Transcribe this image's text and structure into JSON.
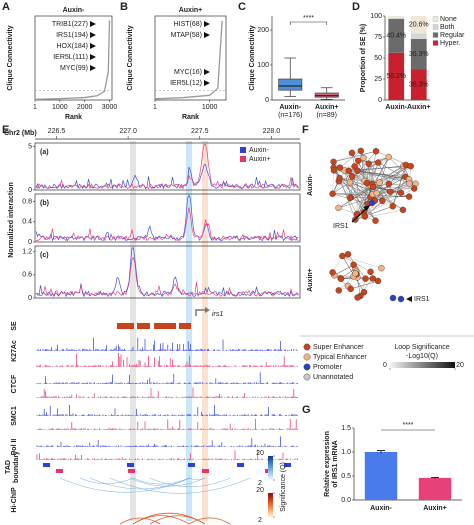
{
  "panel_labels": [
    "A",
    "B",
    "C",
    "D",
    "E",
    "F",
    "G"
  ],
  "chart_data": [
    {
      "type": "rank",
      "title": "Auxin-",
      "xlabel": "Rank",
      "ylabel": "Clique Connectivity",
      "x": [
        1,
        1000,
        2000,
        2500,
        2800,
        2950,
        3000
      ],
      "values": [
        2,
        4,
        7,
        12,
        25,
        80,
        227
      ],
      "xlim": [
        1,
        3100
      ],
      "ylim": [
        0,
        240
      ],
      "xticks": [
        1,
        1000,
        2000,
        3000
      ],
      "threshold": 27,
      "color": "#9a9a9a",
      "annotations": [
        "TRIB1(227)",
        "IRS1(194)",
        "HOX(184)",
        "IER5L(111)",
        "MYC(99)"
      ]
    },
    {
      "type": "rank",
      "title": "Auxin+",
      "xlabel": "Rank",
      "ylabel": "Clique Connectivity",
      "x": [
        1,
        500,
        1000,
        1150,
        1230
      ],
      "values": [
        1,
        2,
        4,
        10,
        68
      ],
      "xlim": [
        1,
        1300
      ],
      "ylim": [
        0,
        72
      ],
      "xticks": [
        1,
        1000
      ],
      "threshold": 8,
      "color": "#9a9a9a",
      "annotations": [
        "HIST(68)",
        "MTAP(58)",
        "MYC(16)",
        "IER5L(12)"
      ]
    },
    {
      "type": "box",
      "ylabel": "Clique Connectivity",
      "categories": [
        "Auxin-",
        "Auxin+"
      ],
      "sublabels": [
        "(n=176)",
        "(n=89)"
      ],
      "stats": [
        {
          "min": 10,
          "q1": 28,
          "median": 40,
          "q3": 60,
          "max": 120
        },
        {
          "min": 2,
          "q1": 8,
          "median": 12,
          "q3": 20,
          "max": 35
        }
      ],
      "colors": [
        "#4f8fd8",
        "#d4667a"
      ],
      "ylim": [
        0,
        240
      ],
      "yticks": [
        0,
        100,
        200
      ],
      "significance": "****"
    },
    {
      "type": "stacked-bar",
      "ylabel": "Proportion of SE (%)",
      "categories": [
        "Auxin-",
        "Auxin+"
      ],
      "series": [
        {
          "name": "Hyper.",
          "color": "#c8202d",
          "values": [
            56.2,
            36.3
          ],
          "value_labels": [
            "56.2%",
            "36.3%"
          ]
        },
        {
          "name": "Regular",
          "color": "#6b6b6b",
          "values": [
            40.4,
            36.3
          ],
          "value_labels": [
            "40.4%",
            "36.3%"
          ]
        },
        {
          "name": "Both",
          "color": "#d6d6d6",
          "values": [
            1.4,
            6.8
          ],
          "value_labels": [
            null,
            null
          ]
        },
        {
          "name": "None",
          "color": "#f1e7d6",
          "values": [
            2.0,
            20.6
          ],
          "value_labels": [
            null,
            "20.6%"
          ]
        }
      ],
      "ylim": [
        0,
        100
      ],
      "yticks": [
        0,
        25,
        50,
        75,
        100
      ]
    },
    {
      "type": "genome-track",
      "xlabel": "Chr2 (Mb)",
      "xlim": [
        226.35,
        228.2
      ],
      "xticks": [
        226.5,
        {
          "value": 227,
          "label": "227.0"
        },
        227.5,
        {
          "value": 228,
          "label": "228.0"
        }
      ],
      "series": [
        {
          "name": "Auxin-",
          "color": "#2f3fd8"
        },
        {
          "name": "Auxin+",
          "color": "#e8336b"
        }
      ],
      "ylabel": "Normalized interaction",
      "panels": [
        {
          "label": "(a)",
          "ylim": [
            0,
            5.4
          ],
          "yticks": [
            0,
            5
          ]
        },
        {
          "label": "(b)",
          "ylim": [
            0,
            0.95
          ],
          "yticks": [
            0,
            0.4,
            0.8
          ]
        },
        {
          "label": "(c)",
          "ylim": [
            0,
            1.35
          ],
          "yticks": [
            0,
            0.6,
            1.2
          ]
        }
      ],
      "gene": "irs1",
      "tracks": [
        "SE",
        "K27Ac",
        "CTCF",
        "SMC1",
        "Pol II"
      ],
      "tad_label": [
        "TAD",
        "boundary"
      ],
      "hic_label": "Hi-ChIP",
      "colorbar": {
        "label": "Significance (Q)",
        "ticks": [
          20,
          2
        ]
      }
    },
    {
      "type": "bar",
      "ylabel": [
        "Relative expression",
        "of IRS1 mRNA"
      ],
      "categories": [
        "Auxin-",
        "Auxin+"
      ],
      "values": [
        1.0,
        0.46
      ],
      "errors": [
        0.03,
        0.01
      ],
      "colors": [
        "#4a7bea",
        "#e8417a"
      ],
      "ylim": [
        0,
        1.5
      ],
      "yticks": [
        {
          "value": 0,
          "label": "0.0"
        },
        0.5,
        {
          "value": 1,
          "label": "1.0"
        },
        1.5
      ],
      "significance": "****"
    }
  ],
  "network": {
    "groups": [
      "Auxin-",
      "Auxin+"
    ],
    "highlight": "IRS1",
    "legend": [
      {
        "name": "Super Enhancer",
        "color": "#c8441c"
      },
      {
        "name": "Typical Enhancer",
        "color": "#f2b48a"
      },
      {
        "name": "Promoter",
        "color": "#2d3fc7"
      },
      {
        "name": "Unannotated",
        "color": "#c8c8c8"
      }
    ],
    "loop_scale": {
      "title": "Loop Significance",
      "unit": "-Log10(Q)",
      "ticks": [
        0,
        20
      ]
    }
  }
}
